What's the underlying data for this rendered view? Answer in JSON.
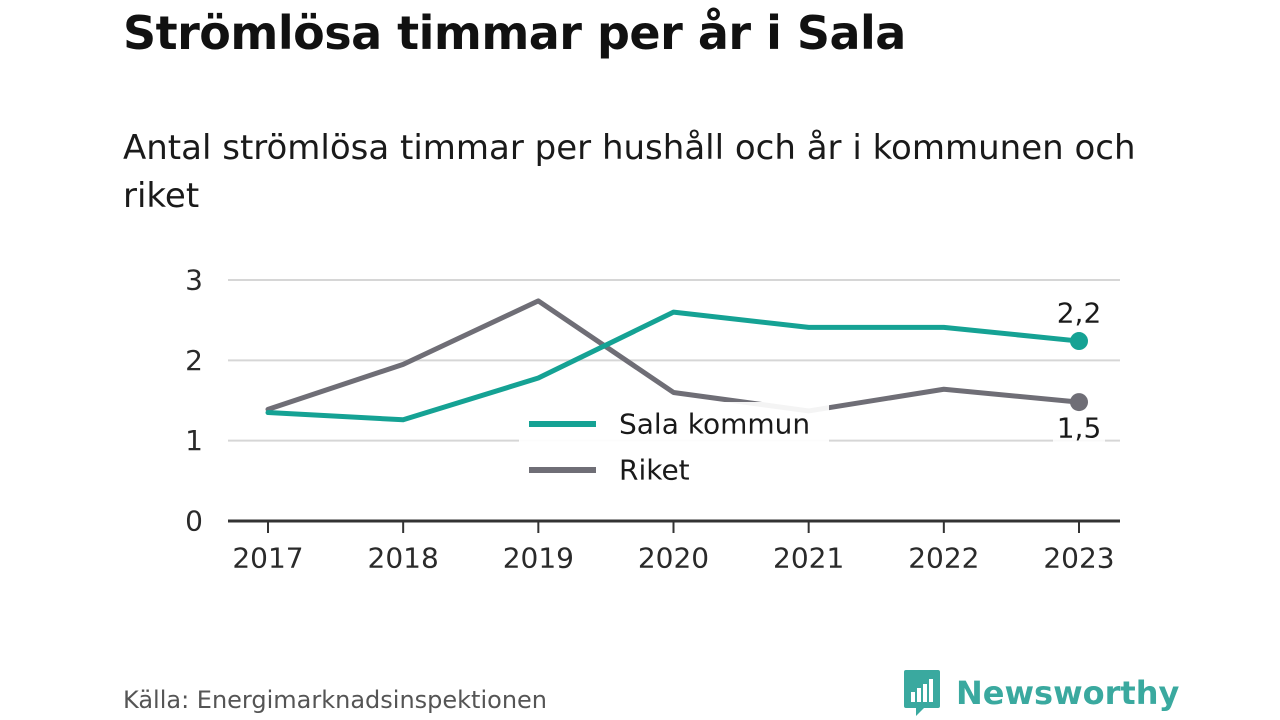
{
  "title": "Strömlösa timmar per år i Sala",
  "subtitle": "Antal strömlösa timmar per hushåll och år i kommunen och riket",
  "source": "Källa: Energimarknadsinspektionen",
  "brand": {
    "name": "Newsworthy",
    "icon": "bar-chart-speech-bubble-icon",
    "color": "#3aa99f"
  },
  "colors": {
    "sala": "#15a294",
    "riket": "#6f6e76",
    "grid": "#d6d6d6",
    "axis": "#333333"
  },
  "chart_data": {
    "type": "line",
    "title": "Strömlösa timmar per år i Sala",
    "subtitle": "Antal strömlösa timmar per hushåll och år i kommunen och riket",
    "xlabel": "",
    "ylabel": "",
    "x": [
      "2017",
      "2018",
      "2019",
      "2020",
      "2021",
      "2022",
      "2023"
    ],
    "ylim": [
      0,
      3
    ],
    "yticks": [
      "0",
      "1",
      "2",
      "3"
    ],
    "grid": true,
    "legend_position": "center",
    "series": [
      {
        "name": "Sala kommun",
        "color": "#15a294",
        "values": [
          1.35,
          1.26,
          1.78,
          2.6,
          2.41,
          2.41,
          2.24
        ],
        "end_label": "2,2"
      },
      {
        "name": "Riket",
        "color": "#6f6e76",
        "values": [
          1.39,
          1.95,
          2.74,
          1.6,
          1.37,
          1.64,
          1.48
        ],
        "end_label": "1,5"
      }
    ]
  }
}
